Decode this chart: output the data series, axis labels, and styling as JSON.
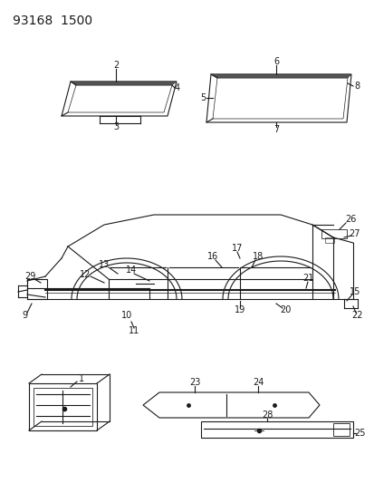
{
  "title": "93168  1500",
  "bg_color": "#ffffff",
  "line_color": "#1a1a1a",
  "title_fontsize": 10,
  "label_fontsize": 7,
  "fig_width": 4.14,
  "fig_height": 5.33,
  "dpi": 100
}
